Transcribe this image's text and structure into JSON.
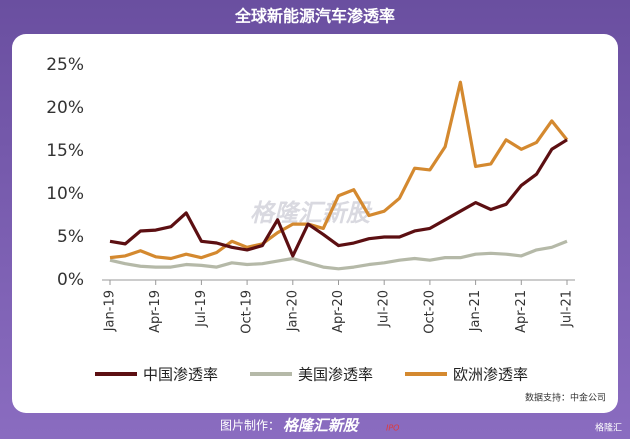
{
  "chart_data": {
    "type": "line",
    "title": "全球新能源汽车渗透率",
    "categories": [
      "Jan-19",
      null,
      null,
      "Apr-19",
      null,
      null,
      "Jul-19",
      null,
      null,
      "Oct-19",
      null,
      null,
      "Jan-20",
      null,
      null,
      "Apr-20",
      null,
      null,
      "Jul-20",
      null,
      null,
      "Oct-20",
      null,
      null,
      "Jan-21",
      null,
      null,
      "Apr-21",
      null,
      null,
      "Jul-21"
    ],
    "series": [
      {
        "name": "中国渗透率",
        "color": "#5c0f12",
        "values": [
          4.5,
          4.2,
          5.7,
          5.8,
          6.2,
          7.8,
          4.5,
          4.3,
          3.8,
          3.5,
          4.0,
          7.0,
          2.8,
          6.5,
          5.3,
          4.0,
          4.3,
          4.8,
          5.0,
          5.0,
          5.7,
          6.0,
          7.0,
          8.0,
          9.0,
          8.2,
          8.8,
          11.0,
          12.3,
          15.2,
          16.3
        ]
      },
      {
        "name": "美国渗透率",
        "color": "#b5b9a8",
        "values": [
          2.3,
          1.9,
          1.6,
          1.5,
          1.5,
          1.8,
          1.7,
          1.5,
          2.0,
          1.8,
          1.9,
          2.2,
          2.5,
          2.0,
          1.5,
          1.3,
          1.5,
          1.8,
          2.0,
          2.3,
          2.5,
          2.3,
          2.6,
          2.6,
          3.0,
          3.1,
          3.0,
          2.8,
          3.5,
          3.8,
          4.5
        ]
      },
      {
        "name": "欧洲渗透率",
        "color": "#d4892f",
        "values": [
          2.6,
          2.8,
          3.4,
          2.7,
          2.5,
          3.0,
          2.6,
          3.2,
          4.5,
          3.8,
          4.2,
          5.5,
          6.5,
          6.5,
          6.0,
          9.8,
          10.5,
          7.5,
          8.0,
          9.5,
          13.0,
          12.8,
          15.5,
          23.0,
          13.2,
          13.5,
          16.3,
          15.2,
          16.0,
          18.5,
          16.3
        ]
      }
    ],
    "ylim": [
      0,
      25
    ],
    "yticks": [
      {
        "value": 0,
        "label": "0%"
      },
      {
        "value": 5,
        "label": "5%"
      },
      {
        "value": 10,
        "label": "10%"
      },
      {
        "value": 15,
        "label": "15%"
      },
      {
        "value": 20,
        "label": "20%"
      },
      {
        "value": 25,
        "label": "25%"
      }
    ],
    "legend": "bottom",
    "source": "数据支持：中金公司",
    "watermark": "格隆汇新股",
    "footer": "图片制作：",
    "footer_brand": "格隆汇新股",
    "footer_tag": "IPO",
    "corner_logo": "格隆汇"
  }
}
